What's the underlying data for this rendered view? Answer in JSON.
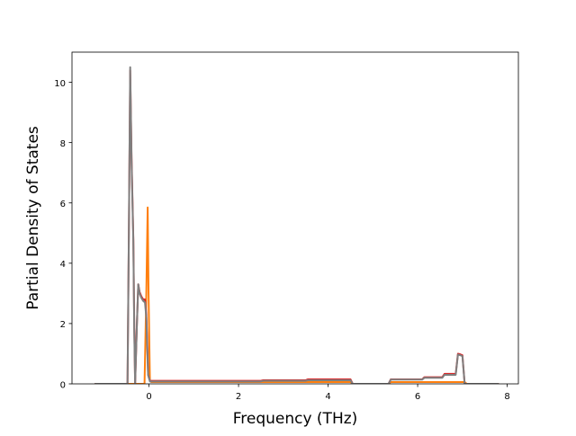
{
  "chart_data": {
    "type": "line",
    "title": "",
    "xlabel": "Frequency (THz)",
    "ylabel": "Partial Density of States",
    "xlim": [
      -1.72,
      8.25
    ],
    "ylim": [
      0,
      11
    ],
    "xticks": [
      0,
      2,
      4,
      6,
      8
    ],
    "xtick_labels": [
      "0",
      "2",
      "4",
      "6",
      "8"
    ],
    "yticks": [
      0,
      2,
      4,
      6,
      8,
      10
    ],
    "ytick_labels": [
      "0",
      "2",
      "4",
      "6",
      "8",
      "10"
    ],
    "grid": false,
    "legend": "none",
    "series": [
      {
        "color": "#ff7f0e",
        "points": [
          [
            -1.2,
            0
          ],
          [
            -0.1,
            0
          ],
          [
            -0.06,
            3.0
          ],
          [
            -0.03,
            5.85
          ],
          [
            -0.01,
            3.0
          ],
          [
            0.02,
            0.1
          ],
          [
            0.05,
            0.06
          ],
          [
            4.5,
            0.06
          ],
          [
            4.55,
            0
          ],
          [
            5.35,
            0
          ],
          [
            5.4,
            0.06
          ],
          [
            7.05,
            0.06
          ],
          [
            7.1,
            0
          ],
          [
            7.8,
            0
          ]
        ]
      },
      {
        "color": "#d62728",
        "points": [
          [
            -1.2,
            0
          ],
          [
            -0.48,
            0
          ],
          [
            -0.45,
            5.0
          ],
          [
            -0.42,
            10.4
          ],
          [
            -0.39,
            7.5
          ],
          [
            -0.35,
            4.8
          ],
          [
            -0.33,
            2.0
          ],
          [
            -0.31,
            0
          ],
          [
            -0.27,
            2.0
          ],
          [
            -0.24,
            3.3
          ],
          [
            -0.21,
            3.05
          ],
          [
            -0.17,
            2.9
          ],
          [
            -0.13,
            2.8
          ],
          [
            -0.09,
            2.8
          ],
          [
            -0.06,
            2.3
          ],
          [
            -0.04,
            1.4
          ],
          [
            -0.02,
            0.3
          ],
          [
            0.02,
            0.1
          ],
          [
            0.5,
            0.1
          ],
          [
            2.5,
            0.1
          ],
          [
            2.55,
            0.12
          ],
          [
            3.5,
            0.12
          ],
          [
            3.55,
            0.15
          ],
          [
            4.5,
            0.15
          ],
          [
            4.55,
            0
          ],
          [
            5.35,
            0
          ],
          [
            5.4,
            0.15
          ],
          [
            6.1,
            0.15
          ],
          [
            6.15,
            0.22
          ],
          [
            6.55,
            0.22
          ],
          [
            6.6,
            0.33
          ],
          [
            6.85,
            0.33
          ],
          [
            6.9,
            1.0
          ],
          [
            6.95,
            0.98
          ],
          [
            7.0,
            0.95
          ],
          [
            7.05,
            0
          ],
          [
            7.8,
            0
          ]
        ]
      },
      {
        "color": "#7f7f7f",
        "points": [
          [
            -1.2,
            0
          ],
          [
            -0.48,
            0
          ],
          [
            -0.45,
            5.0
          ],
          [
            -0.42,
            10.5
          ],
          [
            -0.39,
            7.4
          ],
          [
            -0.35,
            4.7
          ],
          [
            -0.33,
            1.8
          ],
          [
            -0.31,
            0
          ],
          [
            -0.27,
            2.0
          ],
          [
            -0.24,
            3.3
          ],
          [
            -0.21,
            3.0
          ],
          [
            -0.17,
            2.85
          ],
          [
            -0.13,
            2.75
          ],
          [
            -0.09,
            2.7
          ],
          [
            -0.06,
            2.2
          ],
          [
            -0.04,
            1.2
          ],
          [
            -0.02,
            0.3
          ],
          [
            0.02,
            0.08
          ],
          [
            0.5,
            0.08
          ],
          [
            2.5,
            0.08
          ],
          [
            2.55,
            0.1
          ],
          [
            3.5,
            0.1
          ],
          [
            3.55,
            0.12
          ],
          [
            4.5,
            0.12
          ],
          [
            4.55,
            0
          ],
          [
            5.35,
            0
          ],
          [
            5.4,
            0.14
          ],
          [
            6.1,
            0.14
          ],
          [
            6.15,
            0.2
          ],
          [
            6.55,
            0.2
          ],
          [
            6.6,
            0.3
          ],
          [
            6.85,
            0.3
          ],
          [
            6.9,
            0.97
          ],
          [
            6.95,
            0.95
          ],
          [
            7.0,
            0.92
          ],
          [
            7.05,
            0
          ],
          [
            7.8,
            0
          ]
        ]
      }
    ]
  }
}
